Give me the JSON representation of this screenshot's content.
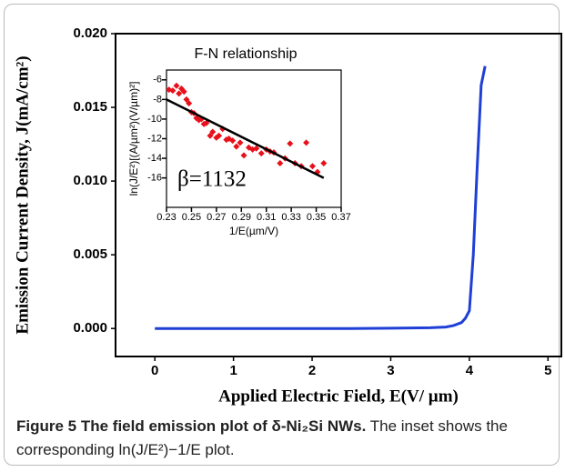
{
  "chart_data": [
    {
      "type": "line",
      "xlabel": "Applied Electric Field, E(V/ µm)",
      "ylabel": "Emission Current Density, J(mA/cm²)",
      "x": [
        0,
        0.5,
        1,
        1.5,
        2,
        2.5,
        3,
        3.5,
        3.7,
        3.8,
        3.9,
        3.95,
        4.0,
        4.05,
        4.1,
        4.15,
        4.2
      ],
      "values": [
        0,
        0,
        0,
        0,
        0,
        0,
        2e-05,
        5e-05,
        0.0001,
        0.0002,
        0.0004,
        0.0007,
        0.0012,
        0.005,
        0.011,
        0.0165,
        0.0178
      ],
      "color": "#1f3fd6",
      "xlim": [
        -0.5,
        5.17
      ],
      "ylim": [
        -0.0019,
        0.02
      ],
      "xticks": [
        0,
        1,
        2,
        3,
        4,
        5
      ],
      "yticks": [
        {
          "value": 0,
          "label": "0.000"
        },
        {
          "value": 0.005,
          "label": "0.005"
        },
        {
          "value": 0.01,
          "label": "0.010"
        },
        {
          "value": 0.015,
          "label": "0.015"
        },
        {
          "value": 0.02,
          "label": "0.020"
        }
      ]
    },
    {
      "type": "scatter",
      "title": "F-N relationship",
      "xlabel": "1/E(µm/V)",
      "ylabel": "ln(J/E²)[(A/µm²)(V/µm)²]",
      "annotation": "β=1132",
      "x": [
        0.232,
        0.235,
        0.238,
        0.24,
        0.242,
        0.244,
        0.246,
        0.248,
        0.25,
        0.252,
        0.254,
        0.256,
        0.258,
        0.26,
        0.262,
        0.265,
        0.267,
        0.27,
        0.272,
        0.275,
        0.278,
        0.28,
        0.283,
        0.286,
        0.289,
        0.292,
        0.296,
        0.299,
        0.302,
        0.306,
        0.31,
        0.313,
        0.316,
        0.321,
        0.325,
        0.329,
        0.333,
        0.338,
        0.342,
        0.347,
        0.351,
        0.356
      ],
      "values": [
        -7.0,
        -7.1,
        -6.6,
        -7.4,
        -6.9,
        -7.2,
        -8.0,
        -8.4,
        -9.3,
        -9.4,
        -9.9,
        -10.1,
        -10.0,
        -10.5,
        -10.4,
        -11.7,
        -11.3,
        -11.9,
        -11.7,
        -11.0,
        -12.1,
        -12.0,
        -12.2,
        -12.8,
        -12.4,
        -13.7,
        -12.9,
        -13.1,
        -13.0,
        -13.5,
        -13.1,
        -13.3,
        -13.4,
        -14.5,
        -14.0,
        -12.5,
        -14.5,
        -14.8,
        -12.4,
        -14.8,
        -15.4,
        -14.5
      ],
      "color": "#e8101a",
      "fit": {
        "x": [
          0.23,
          0.356
        ],
        "values": [
          -8.0,
          -16.0
        ],
        "color": "#000000"
      },
      "xlim": [
        0.23,
        0.37
      ],
      "ylim": [
        -19,
        -5
      ],
      "xticks": [
        0.23,
        0.25,
        0.27,
        0.29,
        0.31,
        0.33,
        0.35,
        0.37
      ],
      "yticks": [
        -6,
        -8,
        -10,
        -12,
        -14,
        -16
      ]
    }
  ],
  "caption": {
    "title": "Figure 5 The field emission plot of δ-Ni₂Si NWs.",
    "text": "The inset shows the corresponding ln(J/E²)−1/E plot."
  }
}
